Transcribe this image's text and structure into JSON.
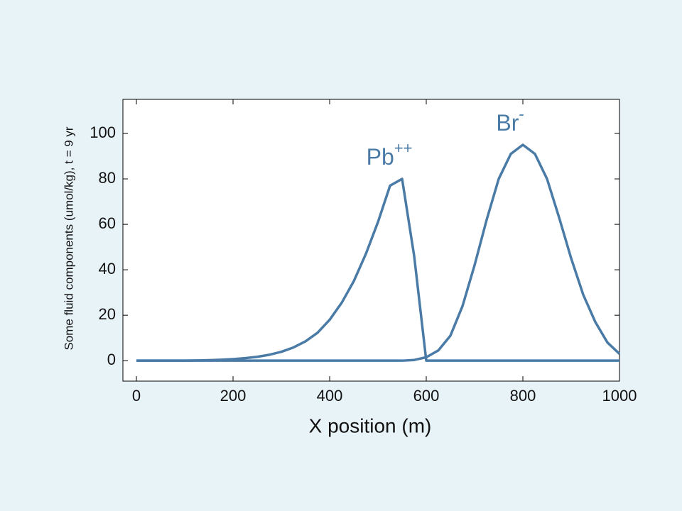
{
  "chart_data": {
    "type": "line",
    "xlabel": "X position (m)",
    "ylabel": "Some fluid components (umol/kg), t = 9 yr",
    "x": [
      0,
      25,
      50,
      75,
      100,
      125,
      150,
      175,
      200,
      225,
      250,
      275,
      300,
      325,
      350,
      375,
      400,
      425,
      450,
      475,
      500,
      525,
      550,
      575,
      600,
      625,
      650,
      675,
      700,
      725,
      750,
      775,
      800,
      825,
      850,
      875,
      900,
      925,
      950,
      975,
      1000
    ],
    "series": [
      {
        "name": "Pb",
        "charge": "++",
        "color": "#4a7ba6",
        "values": [
          0,
          0,
          0,
          0,
          0,
          0.1,
          0.2,
          0.4,
          0.7,
          1.1,
          1.7,
          2.6,
          3.9,
          5.8,
          8.5,
          12.3,
          18,
          25.5,
          35,
          47,
          61,
          77,
          80,
          46,
          0,
          0,
          0,
          0,
          0,
          0,
          0,
          0,
          0,
          0,
          0,
          0,
          0,
          0,
          0,
          0,
          0
        ]
      },
      {
        "name": "Br",
        "charge": "-",
        "color": "#4a7ba6",
        "values": [
          0,
          0,
          0,
          0,
          0,
          0,
          0,
          0,
          0,
          0,
          0,
          0,
          0,
          0,
          0,
          0,
          0,
          0,
          0,
          0,
          0,
          0,
          0,
          0.3,
          1.5,
          4.5,
          11,
          24,
          42,
          62,
          80,
          91,
          95,
          91,
          80,
          63,
          45,
          29,
          17,
          8,
          3
        ]
      }
    ],
    "xlim": [
      -28,
      1000
    ],
    "xticks": [
      0,
      200,
      400,
      600,
      800,
      1000
    ],
    "ylim": [
      -9,
      115
    ],
    "yticks": [
      0,
      20,
      40,
      60,
      80,
      100
    ]
  }
}
